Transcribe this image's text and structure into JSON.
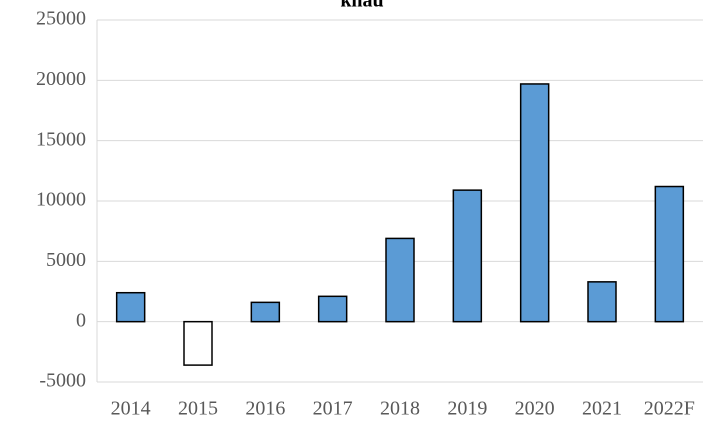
{
  "chart_data": {
    "type": "bar",
    "title": "khẩu",
    "categories": [
      "2014",
      "2015",
      "2016",
      "2017",
      "2018",
      "2019",
      "2020",
      "2021",
      "2022F"
    ],
    "values": [
      2400,
      -3600,
      1600,
      2100,
      6900,
      10900,
      19700,
      3300,
      11200
    ],
    "color": "#5b9bd5",
    "negative_color": "#ffffff",
    "ylim": [
      -5000,
      25000
    ],
    "yticks": [
      -5000,
      0,
      5000,
      10000,
      15000,
      20000,
      25000
    ],
    "grid": true
  }
}
